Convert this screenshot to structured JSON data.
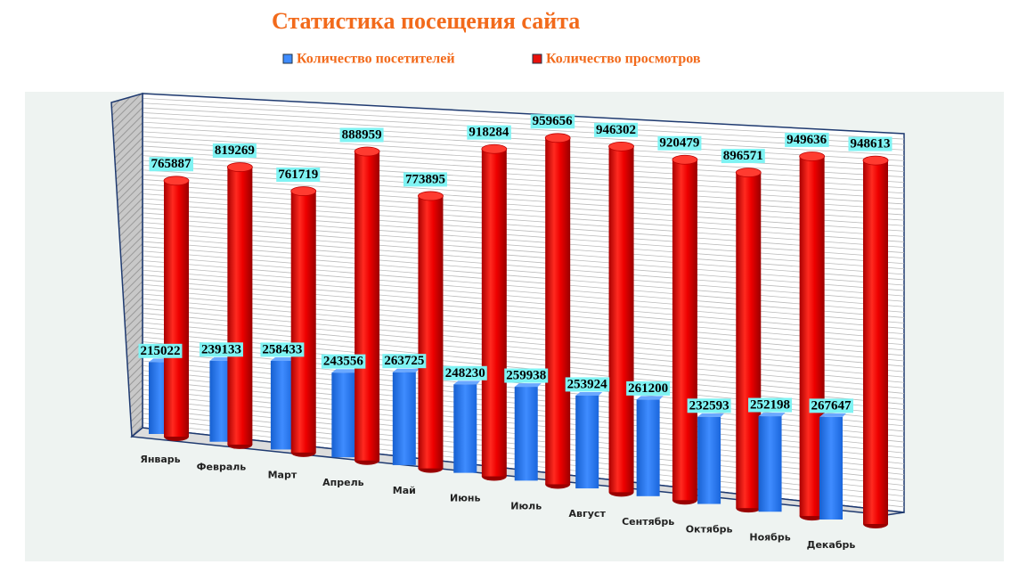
{
  "chart_data": {
    "type": "bar3d",
    "title": "Статистика посещения сайта",
    "categories": [
      "Январь",
      "Февраль",
      "Март",
      "Апрель",
      "Май",
      "Июнь",
      "Июль",
      "Август",
      "Сентябрь",
      "Октябрь",
      "Ноябрь",
      "Декабрь"
    ],
    "series": [
      {
        "name": "Количество посетителей",
        "color": "#1f6fe8",
        "values": [
          215022,
          239133,
          258433,
          243556,
          263725,
          248230,
          259938,
          253924,
          261200,
          232593,
          252198,
          267647
        ]
      },
      {
        "name": "Количество просмотров",
        "color": "#e8100c",
        "values": [
          765887,
          819269,
          761719,
          888959,
          773895,
          918284,
          959656,
          946302,
          920479,
          896571,
          949636,
          948613
        ]
      }
    ],
    "legend": "top"
  }
}
